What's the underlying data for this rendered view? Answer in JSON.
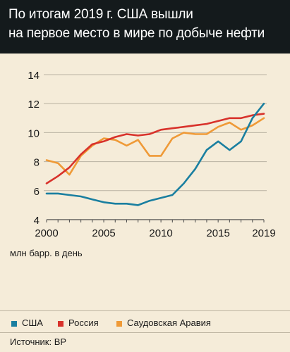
{
  "header": {
    "line1": "По итогам 2019 г. США вышли",
    "line2": "на первое место в мире по добыче нефти"
  },
  "unit_label": "млн барр. в день",
  "source": "Источник: BP",
  "colors": {
    "usa": "#1a7fa0",
    "russia": "#d8322b",
    "saudi": "#ef9a37",
    "grid": "#b9b2a2",
    "axis": "#4a4a4a"
  },
  "chart_data": {
    "type": "line",
    "title": "",
    "xlabel": "",
    "ylabel": "млн барр. в день",
    "xlim": [
      2000,
      2019
    ],
    "ylim": [
      4,
      14
    ],
    "y_ticks": [
      4,
      6,
      8,
      10,
      12,
      14
    ],
    "x_tick_labels": [
      "2000",
      "2005",
      "2010",
      "2015",
      "2019"
    ],
    "x_tick_values": [
      2000,
      2005,
      2010,
      2015,
      2019
    ],
    "grid": true,
    "legend_position": "bottom",
    "x": [
      2000,
      2001,
      2002,
      2003,
      2004,
      2005,
      2006,
      2007,
      2008,
      2009,
      2010,
      2011,
      2012,
      2013,
      2014,
      2015,
      2016,
      2017,
      2018,
      2019
    ],
    "series": [
      {
        "name": "США",
        "key": "usa",
        "values": [
          5.8,
          5.8,
          5.7,
          5.6,
          5.4,
          5.2,
          5.1,
          5.1,
          5.0,
          5.3,
          5.5,
          5.7,
          6.5,
          7.5,
          8.8,
          9.4,
          8.8,
          9.4,
          11.0,
          12.0
        ]
      },
      {
        "name": "Россия",
        "key": "russia",
        "values": [
          6.5,
          7.0,
          7.6,
          8.5,
          9.2,
          9.4,
          9.7,
          9.9,
          9.8,
          9.9,
          10.2,
          10.3,
          10.4,
          10.5,
          10.6,
          10.8,
          11.0,
          11.0,
          11.2,
          11.3
        ]
      },
      {
        "name": "Саудовская Аравия",
        "key": "saudi",
        "values": [
          8.1,
          7.9,
          7.1,
          8.4,
          9.1,
          9.6,
          9.5,
          9.1,
          9.5,
          8.4,
          8.4,
          9.6,
          10.0,
          9.9,
          9.9,
          10.4,
          10.7,
          10.2,
          10.5,
          11.0
        ]
      }
    ]
  }
}
